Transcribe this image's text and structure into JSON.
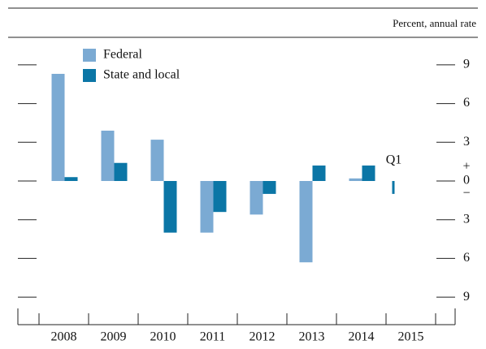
{
  "chart_data": {
    "type": "bar",
    "unit_label": "Percent, annual rate",
    "categories": [
      "2008",
      "2009",
      "2010",
      "2011",
      "2012",
      "2013",
      "2014",
      "2015"
    ],
    "series": [
      {
        "name": "Federal",
        "color": "#7baad3",
        "values": [
          8.3,
          3.9,
          3.2,
          -4.0,
          -2.6,
          -6.3,
          0.2,
          null
        ]
      },
      {
        "name": "State and local",
        "color": "#0b76a6",
        "values": [
          0.3,
          1.4,
          -4.0,
          -2.4,
          -1.0,
          1.2,
          1.2,
          -1.0
        ]
      }
    ],
    "annotations": [
      "Q1"
    ],
    "zero_signs": [
      "+",
      "−"
    ],
    "ylim": [
      -10.5,
      10.5
    ],
    "yticks": [
      {
        "value": -9,
        "label": "9"
      },
      {
        "value": -6,
        "label": "6"
      },
      {
        "value": -3,
        "label": "3"
      },
      0,
      3,
      6,
      9
    ],
    "legend": "upper left"
  }
}
